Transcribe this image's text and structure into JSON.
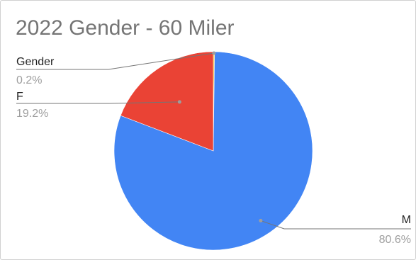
{
  "chart_data": {
    "type": "pie",
    "title": "2022 Gender - 60 Miler",
    "slices": [
      {
        "label": "M",
        "percent": 80.6,
        "percent_label": "80.6%",
        "color": "#4285F4"
      },
      {
        "label": "F",
        "percent": 19.2,
        "percent_label": "19.2%",
        "color": "#EA4335"
      },
      {
        "label": "Gender",
        "percent": 0.2,
        "percent_label": "0.2%",
        "color": "#FBBC04"
      }
    ],
    "legend": "none",
    "leader_color": "#757575"
  }
}
